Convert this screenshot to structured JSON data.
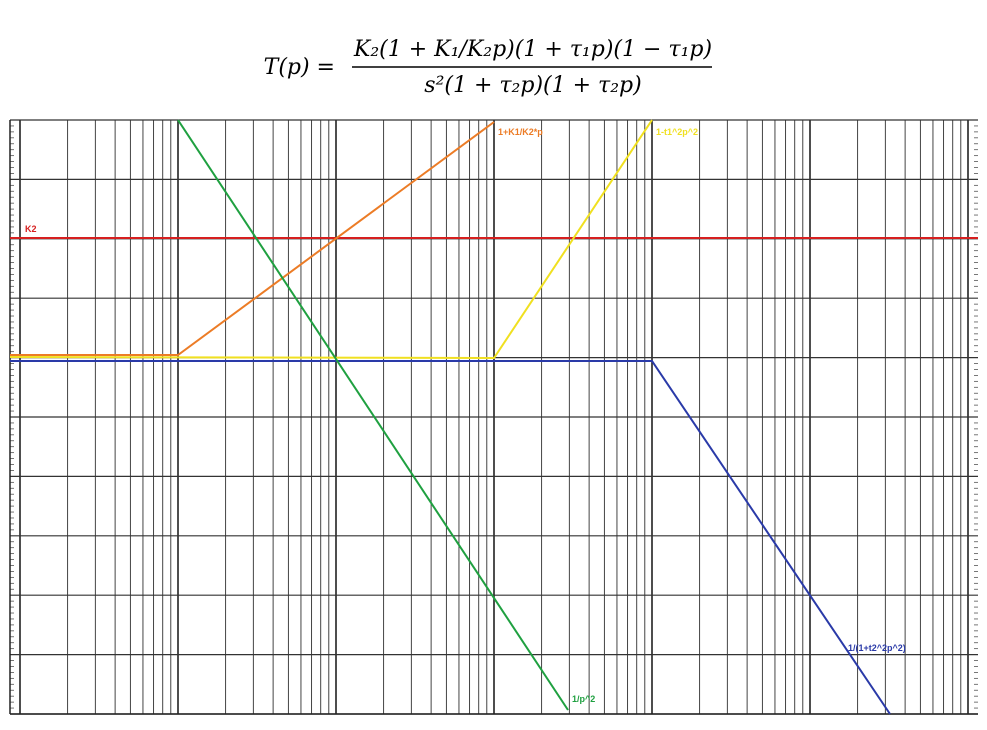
{
  "formula": {
    "lhs": "T(p) =",
    "numerator": "K₂(1 + K₁/K₂p)(1 + τ₁p)(1 − τ₁p)",
    "denominator": "s²(1 + τ₂p)(1 + τ₂p)"
  },
  "curves": [
    {
      "label": "K2"
    },
    {
      "label": "1+K1/K2*p"
    },
    {
      "label": "1-t1^2p^2"
    },
    {
      "label": "1/p^2"
    },
    {
      "label": "1/(1+t2^2p^2)"
    }
  ]
}
